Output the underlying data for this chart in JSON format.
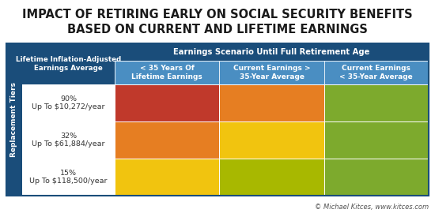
{
  "title_line1": "IMPACT OF RETIRING EARLY ON SOCIAL SECURITY BENEFITS",
  "title_line2": "BASED ON CURRENT AND LIFETIME EARNINGS",
  "title_fontsize": 10.5,
  "title_color": "#1a1a1a",
  "background_color": "#ffffff",
  "header_top_color": "#1a4d7a",
  "header_sub_color": "#4a8ec2",
  "col_header_top_text": "Earnings Scenario Until Full Retirement Age",
  "col_headers": [
    "< 35 Years Of\nLifetime Earnings",
    "Current Earnings >\n35-Year Average",
    "Current Earnings\n< 35-Year Average"
  ],
  "row_header_label": "Replacement Tiers",
  "row_labels": [
    "90%\nUp To $10,272/year",
    "32%\nUp To $61,884/year",
    "15%\nUp To $118,500/year"
  ],
  "cell_label": "Lifetime Inflation-Adjusted\nEarnings Average",
  "grid_colors": [
    [
      "#c0392b",
      "#e67e22",
      "#7daa2d"
    ],
    [
      "#e67e22",
      "#f1c40f",
      "#7daa2d"
    ],
    [
      "#f1c40f",
      "#a8b800",
      "#7daa2d"
    ]
  ],
  "credit_text": "© Michael Kitces, www.kitces.com",
  "credit_color": "#555555",
  "text_color_header": "#ffffff",
  "text_color_rows": "#333333"
}
